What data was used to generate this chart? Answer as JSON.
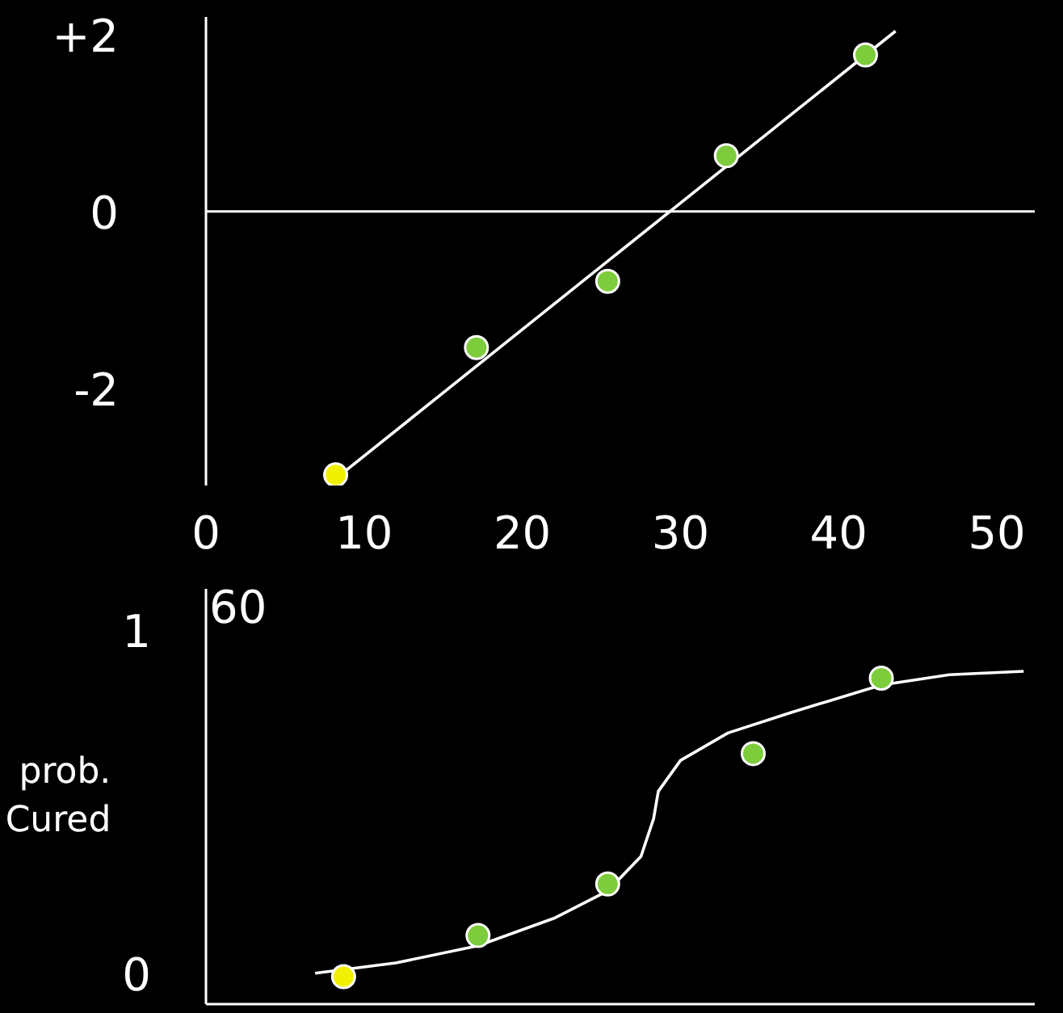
{
  "chart_data": [
    {
      "type": "scatter",
      "xlim": [
        0,
        52.4
      ],
      "ylim": [
        -3.1,
        2.2
      ],
      "xticks": [
        0,
        10,
        20,
        30,
        40,
        50
      ],
      "yticks": [
        {
          "value": 2,
          "label": "+2"
        },
        0,
        -2
      ],
      "grid": false,
      "ref_lines": [
        {
          "axis": "y",
          "value": 0,
          "color": "#ffffff"
        }
      ],
      "series": [
        {
          "type": "line",
          "color": "#ffffff",
          "x": [
            8.5,
            43.6
          ],
          "values": [
            -2.98,
            2.04
          ]
        },
        {
          "marker": "circle",
          "x": [
            8.2,
            17.1,
            25.4,
            32.9,
            41.7
          ],
          "values": [
            -2.98,
            -1.54,
            -0.79,
            0.63,
            1.77
          ],
          "colors": [
            "#f0f000",
            "#7dcc3c",
            "#7dcc3c",
            "#7dcc3c",
            "#7dcc3c"
          ]
        }
      ]
    },
    {
      "type": "scatter",
      "xlim": [
        0,
        52.4
      ],
      "ylim": [
        -0.09,
        1.12
      ],
      "xticks": [
        0,
        10,
        20,
        30,
        40,
        50
      ],
      "yticks": [
        0,
        1
      ],
      "tick_labels": "y",
      "ylabel": "prob. Cured",
      "annotations": [
        "60"
      ],
      "grid": false,
      "series": [
        {
          "type": "line",
          "color": "#ffffff",
          "x": [
            6.9,
            12,
            17.2,
            22,
            25.4,
            27.5,
            28.3,
            28.6,
            30,
            33,
            37,
            42.7,
            47,
            51.7
          ],
          "values": [
            0.0,
            0.03,
            0.08,
            0.16,
            0.24,
            0.34,
            0.45,
            0.53,
            0.62,
            0.7,
            0.76,
            0.84,
            0.87,
            0.88
          ]
        },
        {
          "marker": "circle",
          "x": [
            8.7,
            17.2,
            25.4,
            34.6,
            42.7
          ],
          "values": [
            -0.01,
            0.11,
            0.26,
            0.64,
            0.86
          ],
          "colors": [
            "#f0f000",
            "#7dcc3c",
            "#7dcc3c",
            "#7dcc3c",
            "#7dcc3c"
          ]
        }
      ]
    }
  ]
}
